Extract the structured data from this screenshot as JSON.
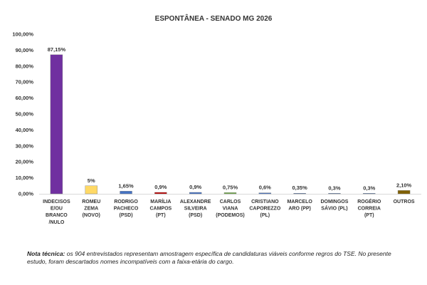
{
  "chart_data": {
    "type": "bar",
    "title": "ESPONTÂNEA - SENADO MG 2026",
    "categories": [
      [
        "INDECISOS",
        "E/OU",
        "BRANCO",
        "/NULO"
      ],
      [
        "ROMEU",
        "ZEMA",
        "(NOVO)"
      ],
      [
        "RODRIGO",
        "PACHECO",
        "(PSD)"
      ],
      [
        "MARÍLIA",
        "CAMPOS",
        "(PT)"
      ],
      [
        "ALEXANDRE",
        "SILVEIRA",
        "(PSD)"
      ],
      [
        "CARLOS",
        "VIANA",
        "(PODEMOS)"
      ],
      [
        "CRISTIANO",
        "CAPOREZZO",
        "(PL)"
      ],
      [
        "MARCELO",
        "ARO (PP)"
      ],
      [
        "DOMINGOS",
        "SÁVIO (PL)"
      ],
      [
        "ROGÉRIO",
        "CORREIA",
        "(PT)"
      ],
      [
        "OUTROS"
      ]
    ],
    "values": [
      87.15,
      5,
      1.65,
      0.9,
      0.9,
      0.75,
      0.6,
      0.35,
      0.3,
      0.3,
      2.1
    ],
    "value_labels": [
      "87,15%",
      "5%",
      "1,65%",
      "0,9%",
      "0,9%",
      "0,75%",
      "0,6%",
      "0,35%",
      "0,3%",
      "0,3%",
      "2,10%"
    ],
    "colors": [
      "#7030a0",
      "#ffd966",
      "#4472c4",
      "#c00000",
      "#4472c4",
      "#70ad47",
      "#4472c4",
      "#4472c4",
      "#4472c4",
      "#4472c4",
      "#806000"
    ],
    "yticks": [
      "0,00%",
      "10,00%",
      "20,00%",
      "30,00%",
      "40,00%",
      "50,00%",
      "60,00%",
      "70,00%",
      "80,00%",
      "90,00%",
      "100,00%"
    ],
    "ylim": [
      0,
      100
    ],
    "xlabel": "",
    "ylabel": "",
    "grid": false,
    "legend": "none"
  },
  "note": {
    "label": "Nota técnica:",
    "text": "os 904 entrevistados representam amostragem específica de candidaturas viáveis conforme regros do TSE. No presente estudo, foram descartados nomes incompatíveis com a faixa-etária do cargo."
  }
}
